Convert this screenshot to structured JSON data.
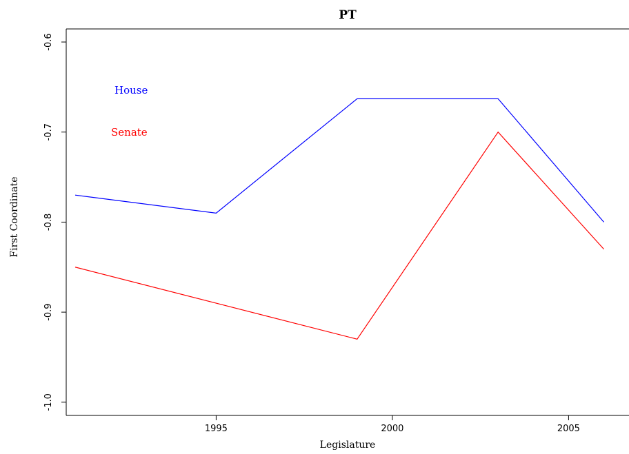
{
  "chart_data": {
    "type": "line",
    "title": "PT",
    "xlabel": "Legislature",
    "ylabel": "First Coordinate",
    "xlim": [
      1991,
      2006.5
    ],
    "ylim": [
      -1.0,
      -0.6
    ],
    "x_ticks": [
      1995,
      2000,
      2005
    ],
    "y_ticks": [
      -1.0,
      -0.9,
      -0.8,
      -0.7,
      -0.6
    ],
    "y_tick_labels": [
      "-1.0",
      "-0.9",
      "-0.8",
      "-0.7",
      "-0.6"
    ],
    "grid": false,
    "legend_placement": "top-left",
    "series": [
      {
        "name": "House",
        "color": "#0000ff",
        "points": [
          [
            1991,
            -0.77
          ],
          [
            1995,
            -0.79
          ],
          [
            1999,
            -0.663
          ],
          [
            2003,
            -0.663
          ],
          [
            2006,
            -0.8
          ]
        ]
      },
      {
        "name": "Senate",
        "color": "#ff0000",
        "points": [
          [
            1991,
            -0.85
          ],
          [
            1995,
            -0.89
          ],
          [
            1999,
            -0.93
          ],
          [
            2003,
            -0.7
          ],
          [
            2006,
            -0.83
          ]
        ]
      }
    ]
  }
}
